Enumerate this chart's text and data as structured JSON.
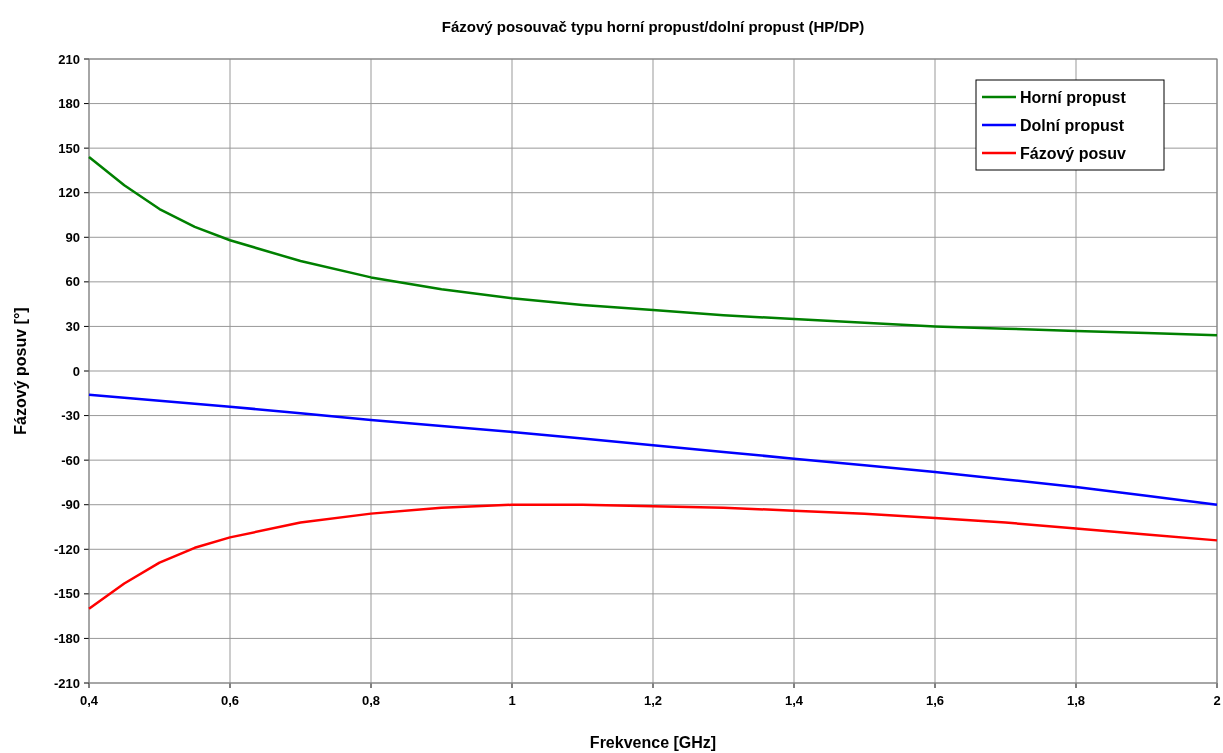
{
  "chart_data": {
    "type": "line",
    "title": "Fázový posouvač typu horní propust/dolní propust (HP/DP)",
    "xlabel": "Frekvence [GHz]",
    "ylabel": "Fázový posuv [°]",
    "x": [
      0.4,
      0.45,
      0.5,
      0.55,
      0.6,
      0.7,
      0.8,
      0.9,
      1.0,
      1.1,
      1.2,
      1.3,
      1.4,
      1.5,
      1.6,
      1.7,
      1.8,
      1.9,
      2.0
    ],
    "series": [
      {
        "name": "Horní propust",
        "color": "#008000",
        "values": [
          144,
          125,
          109,
          97,
          88,
          74,
          63,
          55,
          49,
          44.5,
          41,
          37.5,
          35,
          32.5,
          30,
          28.5,
          27,
          25.5,
          24
        ]
      },
      {
        "name": "Dolní propust",
        "color": "#0000ff",
        "values": [
          -16,
          -18,
          -20,
          -22,
          -24,
          -28.5,
          -33,
          -37,
          -41,
          -45.5,
          -50,
          -54.5,
          -59,
          -63.5,
          -68,
          -73,
          -78,
          -84,
          -90
        ]
      },
      {
        "name": "Fázový posuv",
        "color": "#ff0000",
        "values": [
          -160,
          -143,
          -129,
          -119,
          -112,
          -102,
          -96,
          -92,
          -90,
          -90,
          -91,
          -92,
          -94,
          -96,
          -99,
          -102,
          -106,
          -110,
          -114
        ]
      }
    ],
    "xlim": [
      0.4,
      2
    ],
    "xticks": [
      {
        "value": 0.4,
        "label": "0,4"
      },
      {
        "value": 0.6,
        "label": "0,6"
      },
      {
        "value": 0.8,
        "label": "0,8"
      },
      1,
      {
        "value": 1.2,
        "label": "1,2"
      },
      {
        "value": 1.4,
        "label": "1,4"
      },
      {
        "value": 1.6,
        "label": "1,6"
      },
      {
        "value": 1.8,
        "label": "1,8"
      },
      2
    ],
    "ylim": [
      -210,
      210
    ],
    "yticks": [
      -210,
      -180,
      -150,
      -120,
      -90,
      -60,
      -30,
      0,
      30,
      60,
      90,
      120,
      150,
      180,
      210
    ],
    "grid": true,
    "legend": "top right",
    "marker": "none",
    "line_style": "solid"
  }
}
